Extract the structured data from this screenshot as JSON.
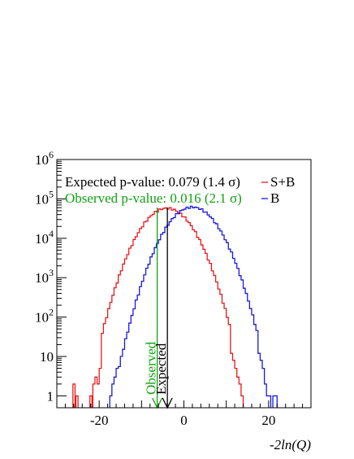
{
  "chart_data": {
    "type": "histogram",
    "title": "",
    "xlabel": "-2ln(Q)",
    "ylabel": "",
    "y_scale": "log",
    "xlim": [
      -30,
      30
    ],
    "ylim": [
      0.5,
      1000000
    ],
    "x_ticks": [
      -20,
      0,
      20
    ],
    "y_ticks": [
      {
        "value": 1000000,
        "mantissa": "10",
        "exp": "6"
      },
      {
        "value": 100000,
        "mantissa": "10",
        "exp": "5"
      },
      {
        "value": 10000,
        "mantissa": "10",
        "exp": "4"
      },
      {
        "value": 1000,
        "mantissa": "10",
        "exp": "3"
      },
      {
        "value": 100,
        "mantissa": "10",
        "exp": "2"
      },
      {
        "value": 10,
        "mantissa": "10",
        "exp": ""
      },
      {
        "value": 1,
        "mantissa": "1",
        "exp": ""
      }
    ],
    "grid": false,
    "legend_position": "top-right",
    "series": [
      {
        "name": "S+B",
        "color": "#e8191c",
        "mean": -4,
        "sigma": 4.0,
        "peak": 58000,
        "tail_left": [
          {
            "x": -26.2,
            "w": 0.5,
            "count": 2
          },
          {
            "x": -25.5,
            "w": 0.5,
            "count": 1
          },
          {
            "x": -22.2,
            "w": 0.5,
            "count": 1
          },
          {
            "x": -21.5,
            "w": 0.5,
            "count": 2
          },
          {
            "x": -21.0,
            "w": 0.5,
            "count": 3
          },
          {
            "x": -20.5,
            "w": 0.5,
            "count": 2
          },
          {
            "x": -20.0,
            "w": 0.5,
            "count": 5
          }
        ],
        "tail_right": [
          {
            "x": 11.0,
            "w": 0.5,
            "count": 12
          },
          {
            "x": 11.5,
            "w": 0.5,
            "count": 8
          },
          {
            "x": 12.0,
            "w": 0.5,
            "count": 5
          },
          {
            "x": 12.5,
            "w": 0.5,
            "count": 3
          },
          {
            "x": 13.0,
            "w": 0.5,
            "count": 2
          },
          {
            "x": 13.5,
            "w": 0.5,
            "count": 1
          }
        ]
      },
      {
        "name": "B",
        "color": "#1a1ad9",
        "mean": 2,
        "sigma": 4.0,
        "peak": 62000,
        "tail_left": [
          {
            "x": -17.5,
            "w": 0.5,
            "count": 1
          },
          {
            "x": -17.0,
            "w": 0.5,
            "count": 2
          },
          {
            "x": -16.5,
            "w": 0.5,
            "count": 3
          },
          {
            "x": -16.0,
            "w": 0.5,
            "count": 5
          }
        ],
        "tail_right": [
          {
            "x": 17.5,
            "w": 0.5,
            "count": 12
          },
          {
            "x": 18.0,
            "w": 0.5,
            "count": 8
          },
          {
            "x": 18.5,
            "w": 0.5,
            "count": 5
          },
          {
            "x": 19.0,
            "w": 0.5,
            "count": 2
          },
          {
            "x": 19.5,
            "w": 0.5,
            "count": 1
          },
          {
            "x": 20.0,
            "w": 0.5,
            "count": 1
          },
          {
            "x": 21.0,
            "w": 0.5,
            "count": 1
          },
          {
            "x": 21.5,
            "w": 0.5,
            "count": 1
          }
        ]
      }
    ],
    "markers": [
      {
        "name": "Observed",
        "x": -6.3,
        "color": "#11a011",
        "top_value": 60000
      },
      {
        "name": "Expected",
        "x": -3.9,
        "color": "#000000",
        "top_value": 60000
      }
    ],
    "annotations": {
      "expected_pvalue": "Expected p-value: 0.079 (1.4 σ)",
      "observed_pvalue": "Observed p-value: 0.016 (2.1 σ)",
      "expected_color": "#000000",
      "observed_color": "#11a011"
    }
  }
}
